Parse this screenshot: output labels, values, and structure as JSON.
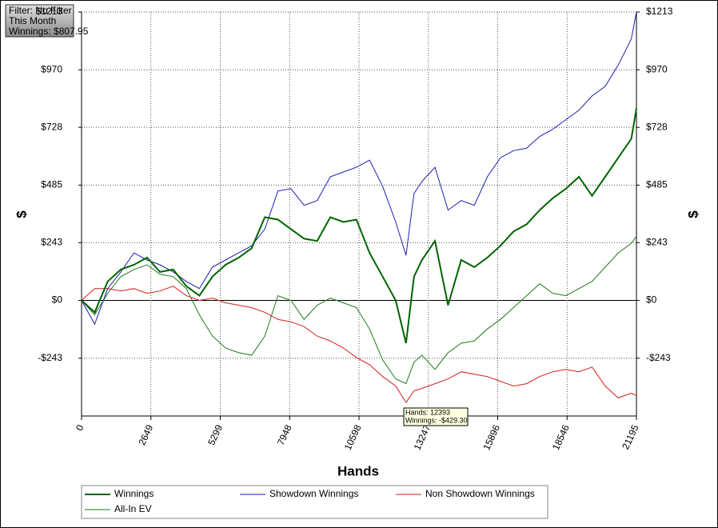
{
  "info": {
    "lines": [
      "Filter: No Filter",
      "This Month",
      "Winnings: $807.95"
    ]
  },
  "tooltip": {
    "lines": [
      "Hands: 12393",
      "Winnings: -$429.30"
    ]
  },
  "chart_data": {
    "type": "line",
    "x_label": "Hands",
    "y_label": "$",
    "x": [
      0,
      500,
      1000,
      1500,
      2000,
      2500,
      3000,
      3500,
      4000,
      4500,
      5000,
      5500,
      6000,
      6500,
      7000,
      7500,
      8000,
      8500,
      9000,
      9500,
      10000,
      10500,
      11000,
      11500,
      12000,
      12393,
      12700,
      13000,
      13500,
      14000,
      14500,
      15000,
      15500,
      16000,
      16500,
      17000,
      17500,
      18000,
      18500,
      19000,
      19500,
      20000,
      20500,
      21000,
      21195
    ],
    "xlim": [
      0,
      21195
    ],
    "xticks": [
      0,
      2649,
      5299,
      7948,
      10598,
      13247,
      15896,
      18546,
      21195
    ],
    "ylim": [
      -486,
      1213
    ],
    "yticks": [
      {
        "value": -243,
        "label": "-$243"
      },
      {
        "value": 0,
        "label": "$0"
      },
      {
        "value": 243,
        "label": "$243"
      },
      {
        "value": 485,
        "label": "$485"
      },
      {
        "value": 728,
        "label": "$728"
      },
      {
        "value": 970,
        "label": "$970"
      },
      {
        "value": 1213,
        "label": "$1213"
      }
    ],
    "grid": true,
    "series": [
      {
        "name": "Winnings",
        "color": "#006400",
        "values": [
          0,
          -50,
          80,
          130,
          150,
          180,
          120,
          130,
          60,
          20,
          100,
          150,
          180,
          220,
          350,
          340,
          300,
          260,
          250,
          350,
          330,
          340,
          200,
          100,
          0,
          -180,
          100,
          170,
          250,
          -20,
          170,
          140,
          180,
          230,
          290,
          320,
          380,
          430,
          470,
          520,
          440,
          520,
          600,
          680,
          808
        ]
      },
      {
        "name": "Showdown Winnings",
        "color": "#1e1eb4",
        "values": [
          0,
          -100,
          50,
          120,
          200,
          170,
          150,
          120,
          80,
          50,
          140,
          170,
          200,
          230,
          300,
          460,
          470,
          400,
          420,
          520,
          540,
          560,
          590,
          480,
          330,
          190,
          450,
          500,
          560,
          380,
          420,
          400,
          520,
          600,
          630,
          640,
          690,
          720,
          760,
          800,
          860,
          900,
          990,
          1100,
          1213
        ]
      },
      {
        "name": "Non Showdown Winnings",
        "color": "#d21e1e",
        "values": [
          0,
          50,
          50,
          40,
          50,
          30,
          40,
          60,
          20,
          0,
          10,
          -10,
          -20,
          -30,
          -50,
          -80,
          -90,
          -110,
          -150,
          -170,
          -200,
          -240,
          -270,
          -320,
          -360,
          -429.3,
          -380,
          -370,
          -350,
          -330,
          -300,
          -310,
          -320,
          -340,
          -360,
          -350,
          -320,
          -300,
          -290,
          -300,
          -280,
          -360,
          -410,
          -390,
          -400
        ]
      },
      {
        "name": "All-In EV",
        "color": "#1e7a1e",
        "values": [
          0,
          -60,
          30,
          100,
          130,
          150,
          110,
          100,
          50,
          -60,
          -150,
          -200,
          -220,
          -230,
          -150,
          20,
          0,
          -80,
          -20,
          10,
          -10,
          -30,
          -120,
          -250,
          -330,
          -350,
          -260,
          -230,
          -290,
          -220,
          -180,
          -170,
          -120,
          -80,
          -30,
          20,
          70,
          30,
          20,
          50,
          80,
          140,
          200,
          240,
          270
        ]
      }
    ]
  }
}
